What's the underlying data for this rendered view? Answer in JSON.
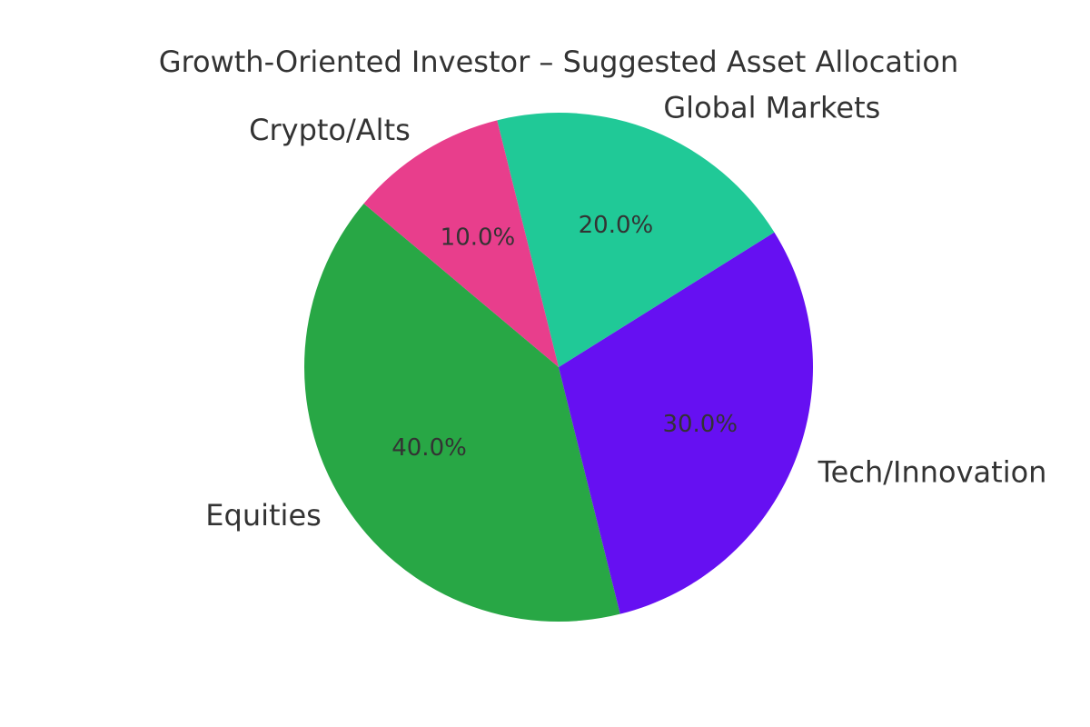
{
  "chart_data": {
    "type": "pie",
    "title": "Growth-Oriented Investor – Suggested Asset Allocation",
    "categories": [
      "Equities",
      "Tech/Innovation",
      "Global Markets",
      "Crypto/Alts"
    ],
    "values": [
      40,
      30,
      20,
      10
    ],
    "value_labels": [
      "40.0%",
      "30.0%",
      "20.0%",
      "10.0%"
    ],
    "colors": [
      "#28a745",
      "#6610f2",
      "#20c997",
      "#e83e8c"
    ],
    "start_angle_deg": 140,
    "direction": "counterclockwise",
    "legend": "none"
  }
}
